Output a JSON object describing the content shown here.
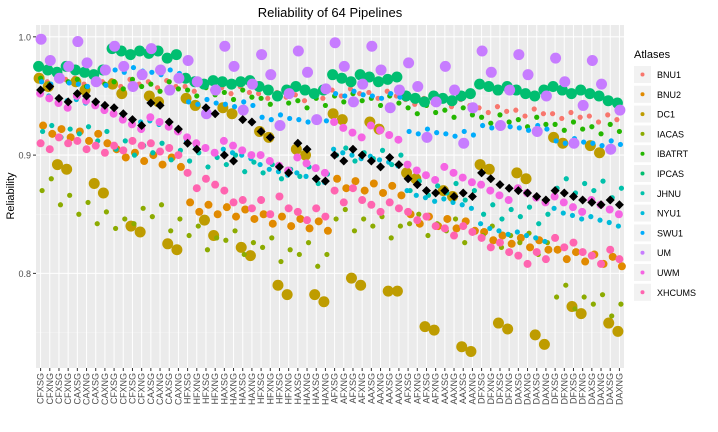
{
  "chart_data": {
    "type": "scatter",
    "title": "Reliability of 64 Pipelines",
    "xlabel": "",
    "ylabel": "Reliability",
    "ylim": [
      0.72,
      1.01
    ],
    "yticks": [
      0.8,
      0.9,
      1.0
    ],
    "ytick_labels": [
      "0.8",
      "0.9",
      "1.0"
    ],
    "grid": true,
    "legend": {
      "title": "Atlases",
      "placement": "right"
    },
    "categories": [
      "CFXSG",
      "CFXNG",
      "CFXSG",
      "CFXNG",
      "CAXSG",
      "CAXNG",
      "CAXSG",
      "CAXNG",
      "CFXSG",
      "CFXNG",
      "CFXSG",
      "CFXNG",
      "CAXSG",
      "CAXNG",
      "CAXSG",
      "CAXNG",
      "HFXSG",
      "HFXNG",
      "HFXSG",
      "HFXNG",
      "HAXSG",
      "HAXNG",
      "HAXSG",
      "HAXNG",
      "HFXSG",
      "HFXNG",
      "HFXSG",
      "HFXNG",
      "HAXSG",
      "HAXNG",
      "HAXSG",
      "HAXNG",
      "AFXSG",
      "AFXNG",
      "AFXSG",
      "AFXNG",
      "AAXSG",
      "AAXNG",
      "AAXSG",
      "AAXNG",
      "AFXSG",
      "AFXNG",
      "AFXSG",
      "AFXNG",
      "AAXSG",
      "AAXNG",
      "AAXSG",
      "AAXNG",
      "DFXSG",
      "DFXNG",
      "DFXSG",
      "DFXNG",
      "DAXSG",
      "DAXNG",
      "DAXSG",
      "DAXNG",
      "DFXSG",
      "DFXNG",
      "DFXSG",
      "DFXNG",
      "DAXSG",
      "DAXNG",
      "DAXSG",
      "DAXNG"
    ],
    "series": [
      {
        "name": "BNU1",
        "color": "#F8766D",
        "values": [
          0.966,
          0.962,
          0.968,
          0.964,
          0.965,
          0.96,
          0.966,
          0.962,
          0.963,
          0.958,
          0.964,
          0.96,
          0.962,
          0.957,
          0.963,
          0.958,
          0.958,
          0.954,
          0.96,
          0.955,
          0.957,
          0.952,
          0.958,
          0.953,
          0.952,
          0.948,
          0.953,
          0.949,
          0.951,
          0.946,
          0.952,
          0.948,
          0.955,
          0.95,
          0.956,
          0.952,
          0.953,
          0.948,
          0.954,
          0.95,
          0.947,
          0.943,
          0.948,
          0.944,
          0.946,
          0.941,
          0.947,
          0.942,
          0.94,
          0.936,
          0.941,
          0.937,
          0.938,
          0.933,
          0.939,
          0.935,
          0.935,
          0.931,
          0.936,
          0.932,
          0.933,
          0.928,
          0.934,
          0.93
        ]
      },
      {
        "name": "BNU2",
        "color": "#E18A00",
        "values": [
          0.925,
          0.918,
          0.922,
          0.915,
          0.92,
          0.912,
          0.918,
          0.91,
          0.905,
          0.898,
          0.902,
          0.895,
          0.9,
          0.892,
          0.898,
          0.89,
          0.86,
          0.852,
          0.858,
          0.85,
          0.856,
          0.848,
          0.854,
          0.846,
          0.85,
          0.842,
          0.848,
          0.84,
          0.846,
          0.838,
          0.844,
          0.836,
          0.88,
          0.872,
          0.878,
          0.87,
          0.876,
          0.868,
          0.874,
          0.866,
          0.85,
          0.842,
          0.848,
          0.84,
          0.846,
          0.838,
          0.844,
          0.836,
          0.835,
          0.828,
          0.832,
          0.825,
          0.83,
          0.822,
          0.828,
          0.82,
          0.82,
          0.812,
          0.818,
          0.81,
          0.816,
          0.808,
          0.814,
          0.806
        ]
      },
      {
        "name": "DC1",
        "color": "#BE9C00",
        "values": [
          0.965,
          0.958,
          0.892,
          0.888,
          0.962,
          0.955,
          0.876,
          0.868,
          0.96,
          0.952,
          0.84,
          0.835,
          0.95,
          0.945,
          0.825,
          0.82,
          0.948,
          0.942,
          0.845,
          0.832,
          0.94,
          0.935,
          0.822,
          0.815,
          0.92,
          0.915,
          0.79,
          0.782,
          0.905,
          0.9,
          0.782,
          0.776,
          0.935,
          0.93,
          0.796,
          0.79,
          0.928,
          0.922,
          0.785,
          0.785,
          0.885,
          0.88,
          0.755,
          0.752,
          0.87,
          0.865,
          0.738,
          0.734,
          0.892,
          0.888,
          0.758,
          0.753,
          0.885,
          0.88,
          0.748,
          0.74,
          0.915,
          0.91,
          0.772,
          0.766,
          0.908,
          0.902,
          0.758,
          0.751
        ]
      },
      {
        "name": "IACAS",
        "color": "#8CAB00",
        "values": [
          0.87,
          0.88,
          0.858,
          0.866,
          0.85,
          0.86,
          0.842,
          0.852,
          0.838,
          0.846,
          0.842,
          0.855,
          0.848,
          0.858,
          0.836,
          0.846,
          0.832,
          0.84,
          0.82,
          0.83,
          0.828,
          0.836,
          0.816,
          0.826,
          0.822,
          0.83,
          0.81,
          0.82,
          0.816,
          0.826,
          0.806,
          0.816,
          0.846,
          0.854,
          0.836,
          0.846,
          0.84,
          0.848,
          0.83,
          0.84,
          0.842,
          0.85,
          0.832,
          0.842,
          0.836,
          0.846,
          0.826,
          0.836,
          0.832,
          0.84,
          0.822,
          0.832,
          0.826,
          0.834,
          0.816,
          0.826,
          0.78,
          0.79,
          0.77,
          0.78,
          0.774,
          0.782,
          0.764,
          0.774
        ]
      },
      {
        "name": "IBATRT",
        "color": "#24B700",
        "values": [
          0.965,
          0.96,
          0.968,
          0.962,
          0.964,
          0.958,
          0.966,
          0.96,
          0.962,
          0.956,
          0.964,
          0.958,
          0.96,
          0.954,
          0.962,
          0.956,
          0.955,
          0.95,
          0.957,
          0.951,
          0.953,
          0.947,
          0.955,
          0.949,
          0.948,
          0.943,
          0.95,
          0.944,
          0.946,
          0.94,
          0.948,
          0.942,
          0.95,
          0.945,
          0.952,
          0.946,
          0.948,
          0.942,
          0.95,
          0.944,
          0.94,
          0.935,
          0.942,
          0.936,
          0.938,
          0.932,
          0.94,
          0.934,
          0.932,
          0.927,
          0.934,
          0.928,
          0.93,
          0.924,
          0.932,
          0.926,
          0.926,
          0.921,
          0.928,
          0.922,
          0.924,
          0.918,
          0.926,
          0.92
        ]
      },
      {
        "name": "IPCAS",
        "color": "#00BE70",
        "values": [
          0.975,
          0.972,
          0.97,
          0.975,
          0.972,
          0.97,
          0.968,
          0.972,
          0.99,
          0.988,
          0.985,
          0.988,
          0.986,
          0.988,
          0.982,
          0.985,
          0.965,
          0.962,
          0.96,
          0.963,
          0.962,
          0.96,
          0.962,
          0.963,
          0.958,
          0.955,
          0.95,
          0.955,
          0.958,
          0.955,
          0.952,
          0.955,
          0.968,
          0.965,
          0.962,
          0.968,
          0.966,
          0.962,
          0.964,
          0.966,
          0.95,
          0.948,
          0.945,
          0.95,
          0.948,
          0.946,
          0.95,
          0.952,
          0.96,
          0.958,
          0.955,
          0.958,
          0.955,
          0.952,
          0.95,
          0.955,
          0.958,
          0.955,
          0.952,
          0.955,
          0.952,
          0.95,
          0.946,
          0.944
        ]
      },
      {
        "name": "JHNU",
        "color": "#00C1AB",
        "values": [
          0.92,
          0.925,
          0.915,
          0.922,
          0.918,
          0.924,
          0.912,
          0.92,
          0.905,
          0.912,
          0.9,
          0.908,
          0.902,
          0.91,
          0.896,
          0.904,
          0.895,
          0.902,
          0.89,
          0.898,
          0.892,
          0.9,
          0.886,
          0.894,
          0.885,
          0.892,
          0.88,
          0.888,
          0.882,
          0.89,
          0.876,
          0.884,
          0.9,
          0.906,
          0.895,
          0.902,
          0.897,
          0.904,
          0.892,
          0.9,
          0.87,
          0.878,
          0.866,
          0.874,
          0.868,
          0.876,
          0.862,
          0.87,
          0.85,
          0.858,
          0.846,
          0.854,
          0.848,
          0.856,
          0.842,
          0.85,
          0.872,
          0.88,
          0.868,
          0.876,
          0.87,
          0.878,
          0.864,
          0.872
        ]
      },
      {
        "name": "NYU1",
        "color": "#00BBDA",
        "values": [
          0.952,
          0.95,
          0.948,
          0.946,
          0.947,
          0.944,
          0.943,
          0.941,
          0.935,
          0.932,
          0.93,
          0.928,
          0.929,
          0.926,
          0.925,
          0.922,
          0.912,
          0.908,
          0.906,
          0.903,
          0.905,
          0.902,
          0.9,
          0.897,
          0.892,
          0.888,
          0.886,
          0.883,
          0.885,
          0.882,
          0.88,
          0.877,
          0.905,
          0.902,
          0.9,
          0.897,
          0.899,
          0.896,
          0.894,
          0.891,
          0.87,
          0.866,
          0.864,
          0.861,
          0.863,
          0.86,
          0.858,
          0.855,
          0.842,
          0.838,
          0.836,
          0.833,
          0.835,
          0.832,
          0.83,
          0.827,
          0.855,
          0.851,
          0.849,
          0.846,
          0.848,
          0.845,
          0.843,
          0.84
        ]
      },
      {
        "name": "SWU1",
        "color": "#00ACFC",
        "values": [
          0.962,
          0.96,
          0.964,
          0.961,
          0.96,
          0.958,
          0.962,
          0.959,
          0.972,
          0.97,
          0.974,
          0.971,
          0.97,
          0.968,
          0.972,
          0.969,
          0.945,
          0.943,
          0.947,
          0.944,
          0.943,
          0.941,
          0.945,
          0.942,
          0.932,
          0.93,
          0.934,
          0.931,
          0.93,
          0.928,
          0.932,
          0.929,
          0.952,
          0.95,
          0.954,
          0.951,
          0.95,
          0.948,
          0.952,
          0.949,
          0.92,
          0.918,
          0.922,
          0.919,
          0.918,
          0.916,
          0.92,
          0.917,
          0.925,
          0.923,
          0.927,
          0.924,
          0.923,
          0.921,
          0.925,
          0.922,
          0.912,
          0.91,
          0.914,
          0.911,
          0.91,
          0.908,
          0.912,
          0.909
        ]
      },
      {
        "name": "UM",
        "color": "#C77CFF",
        "values": [
          0.998,
          0.98,
          0.965,
          0.975,
          0.996,
          0.978,
          0.962,
          0.972,
          0.992,
          0.975,
          0.958,
          0.968,
          0.99,
          0.972,
          0.955,
          0.965,
          0.98,
          0.962,
          0.935,
          0.955,
          0.992,
          0.975,
          0.938,
          0.96,
          0.985,
          0.968,
          0.925,
          0.952,
          0.988,
          0.97,
          0.93,
          0.956,
          0.995,
          0.975,
          0.945,
          0.96,
          0.992,
          0.972,
          0.94,
          0.955,
          0.978,
          0.958,
          0.915,
          0.945,
          0.975,
          0.955,
          0.91,
          0.94,
          0.988,
          0.97,
          0.925,
          0.955,
          0.985,
          0.968,
          0.92,
          0.95,
          0.982,
          0.962,
          0.91,
          0.942,
          0.98,
          0.96,
          0.905,
          0.938
        ]
      },
      {
        "name": "UWM",
        "color": "#F564E3",
        "values": [
          0.952,
          0.948,
          0.944,
          0.94,
          0.95,
          0.946,
          0.942,
          0.938,
          0.935,
          0.93,
          0.926,
          0.922,
          0.932,
          0.928,
          0.924,
          0.92,
          0.915,
          0.91,
          0.906,
          0.902,
          0.912,
          0.908,
          0.904,
          0.9,
          0.9,
          0.895,
          0.891,
          0.887,
          0.898,
          0.893,
          0.889,
          0.885,
          0.928,
          0.923,
          0.919,
          0.915,
          0.925,
          0.921,
          0.917,
          0.913,
          0.892,
          0.887,
          0.883,
          0.879,
          0.89,
          0.885,
          0.881,
          0.877,
          0.875,
          0.87,
          0.866,
          0.862,
          0.872,
          0.868,
          0.864,
          0.86,
          0.865,
          0.86,
          0.856,
          0.852,
          0.862,
          0.858,
          0.854,
          0.85
        ]
      },
      {
        "name": "XHCUMS",
        "color": "#FF64B0",
        "values": [
          0.91,
          0.905,
          0.915,
          0.91,
          0.912,
          0.905,
          0.908,
          0.902,
          0.908,
          0.904,
          0.912,
          0.908,
          0.91,
          0.903,
          0.906,
          0.9,
          0.885,
          0.872,
          0.88,
          0.875,
          0.87,
          0.86,
          0.862,
          0.855,
          0.862,
          0.85,
          0.865,
          0.855,
          0.852,
          0.845,
          0.855,
          0.848,
          0.87,
          0.86,
          0.872,
          0.862,
          0.858,
          0.852,
          0.86,
          0.855,
          0.852,
          0.845,
          0.848,
          0.84,
          0.838,
          0.832,
          0.84,
          0.835,
          0.83,
          0.822,
          0.826,
          0.818,
          0.815,
          0.808,
          0.818,
          0.812,
          0.83,
          0.822,
          0.826,
          0.818,
          0.815,
          0.808,
          0.82,
          0.812
        ]
      },
      {
        "name": "",
        "color": "#000000",
        "values": [
          0.955,
          0.958,
          0.948,
          0.945,
          0.952,
          0.95,
          0.945,
          0.942,
          0.94,
          0.935,
          0.93,
          0.925,
          0.944,
          0.942,
          0.928,
          0.922,
          0.91,
          0.905,
          0.94,
          0.935,
          0.9,
          0.895,
          0.93,
          0.928,
          0.92,
          0.915,
          0.89,
          0.885,
          0.91,
          0.905,
          0.88,
          0.878,
          0.9,
          0.895,
          0.905,
          0.9,
          0.895,
          0.89,
          0.898,
          0.892,
          0.88,
          0.875,
          0.87,
          0.868,
          0.87,
          0.865,
          0.868,
          0.865,
          0.885,
          0.88,
          0.875,
          0.872,
          0.87,
          0.868,
          0.865,
          0.862,
          0.87,
          0.868,
          0.865,
          0.862,
          0.86,
          0.858,
          0.862,
          0.858
        ]
      }
    ]
  }
}
